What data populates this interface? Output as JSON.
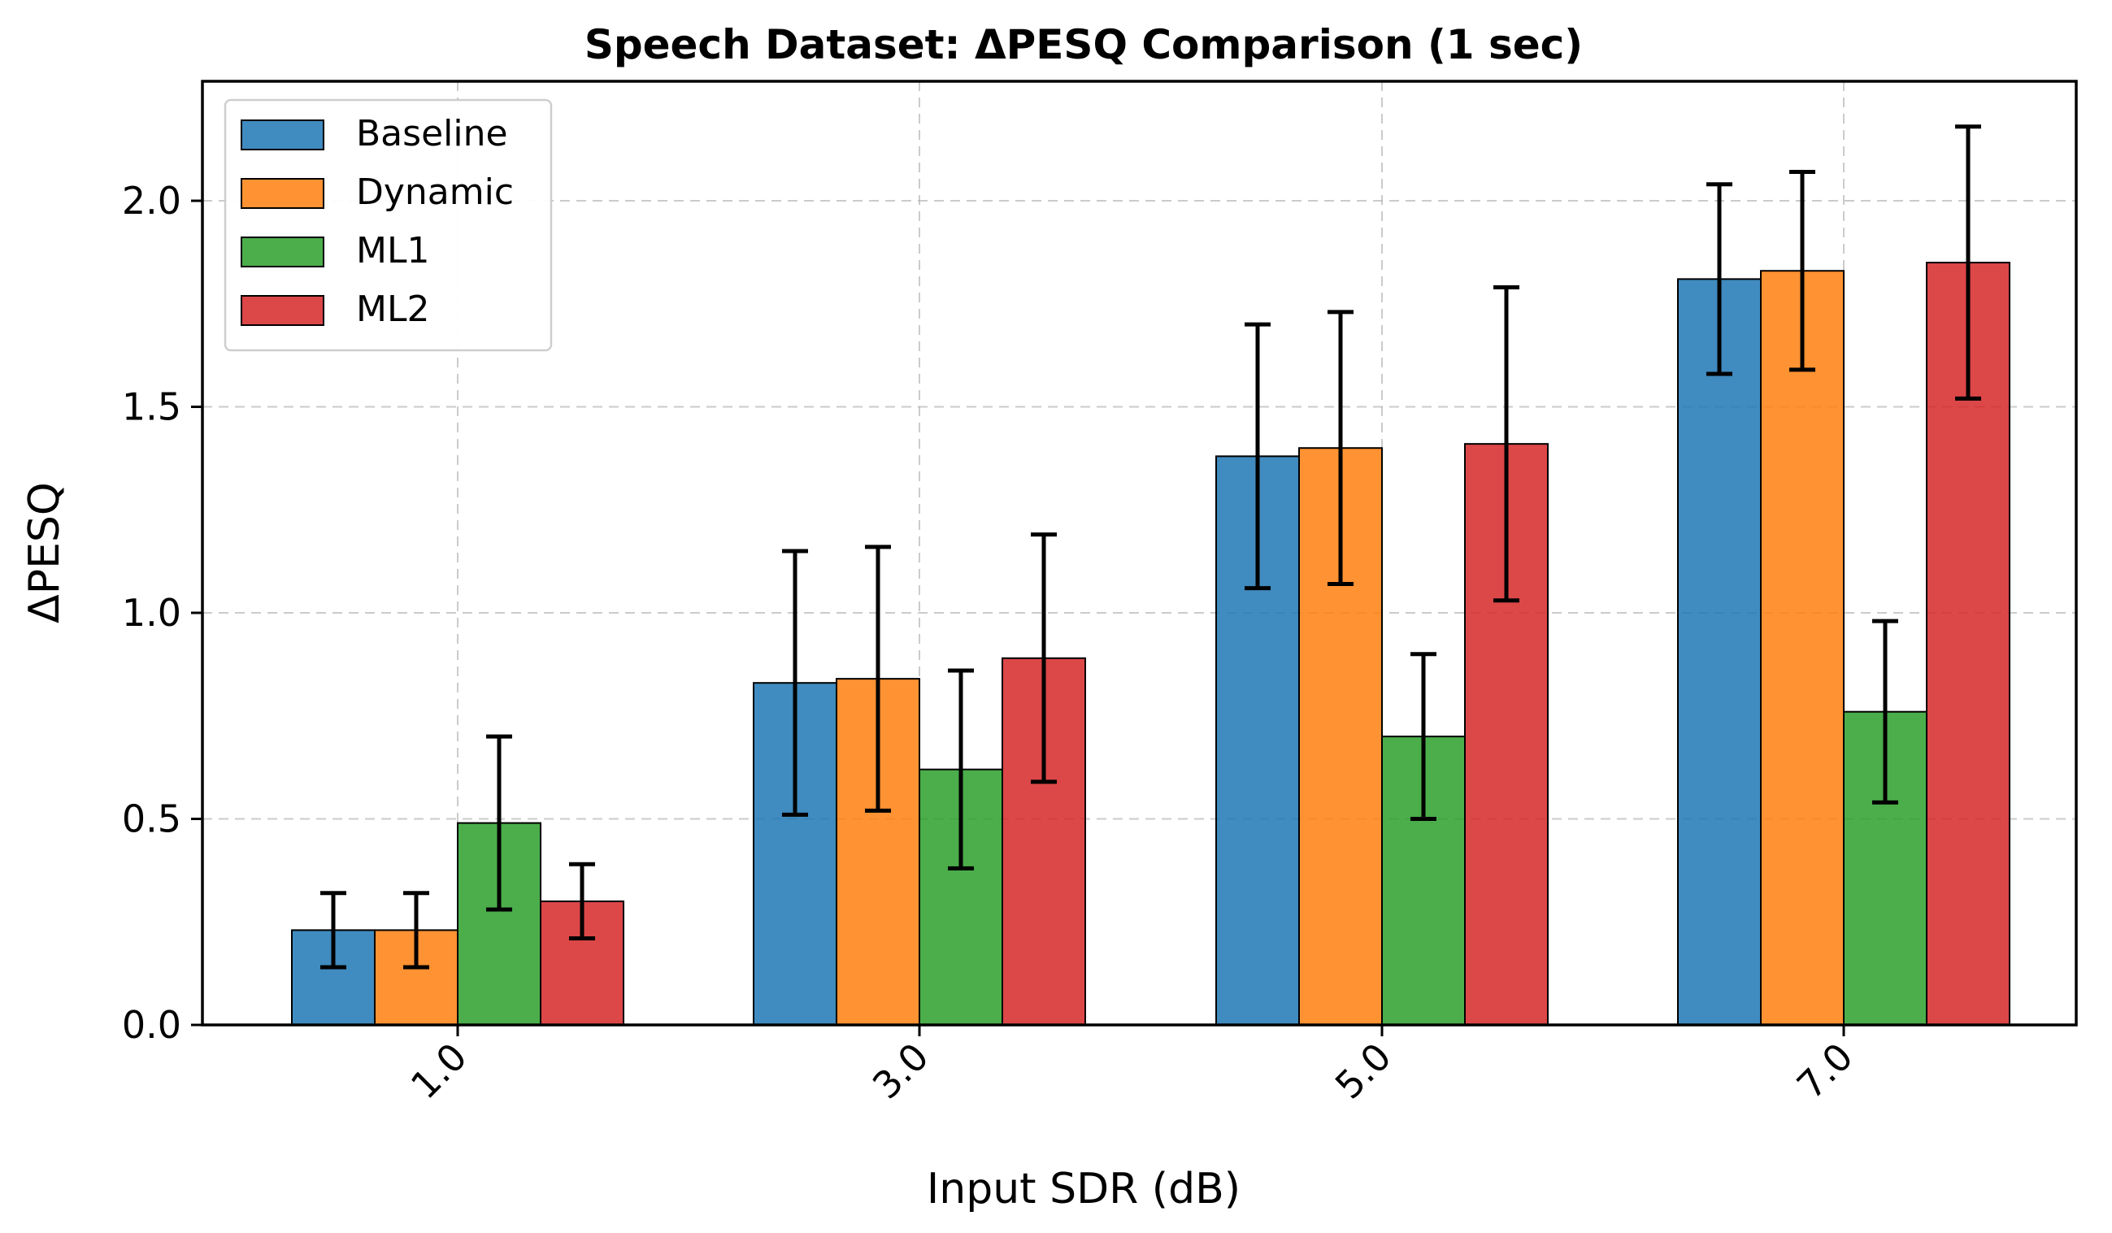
{
  "chart_data": {
    "type": "bar",
    "title": "Speech Dataset: ΔPESQ Comparison (1 sec)",
    "xlabel": "Input SDR (dB)",
    "ylabel": "ΔPESQ",
    "categories": [
      "1.0",
      "3.0",
      "5.0",
      "7.0"
    ],
    "ylim": [
      0,
      2.29
    ],
    "yticks": [
      "0.0",
      "0.5",
      "1.0",
      "1.5",
      "2.0"
    ],
    "grid": true,
    "legend_position": "top-left",
    "series": [
      {
        "name": "Baseline",
        "color": "#1f77b4",
        "values": [
          0.23,
          0.83,
          1.38,
          1.81
        ],
        "errors": [
          0.09,
          0.32,
          0.32,
          0.23
        ]
      },
      {
        "name": "Dynamic",
        "color": "#ff7f0e",
        "values": [
          0.23,
          0.84,
          1.4,
          1.83
        ],
        "errors": [
          0.09,
          0.32,
          0.33,
          0.24
        ]
      },
      {
        "name": "ML1",
        "color": "#2ca02c",
        "values": [
          0.49,
          0.62,
          0.7,
          0.76
        ],
        "errors": [
          0.21,
          0.24,
          0.2,
          0.22
        ]
      },
      {
        "name": "ML2",
        "color": "#d62728",
        "values": [
          0.3,
          0.89,
          1.41,
          1.85
        ],
        "errors": [
          0.09,
          0.3,
          0.38,
          0.33
        ]
      }
    ]
  }
}
